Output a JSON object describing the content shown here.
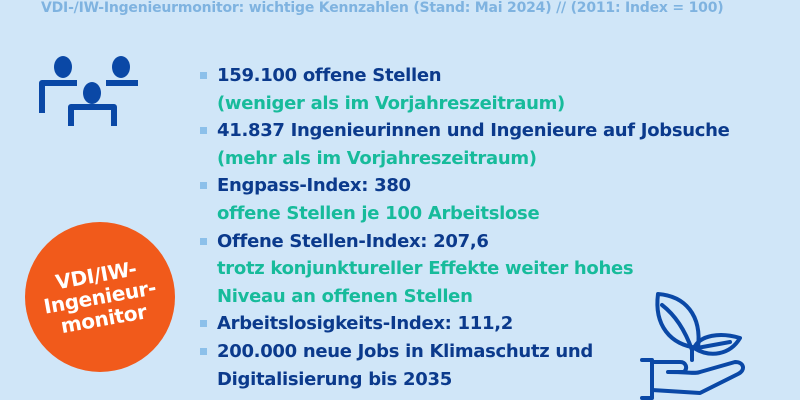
{
  "caption": "VDI-/IW-Ingenieurmonitor: wichtige Kennzahlen (Stand: Mai 2024) // (2011: Index = 100)",
  "badge": {
    "line1": "VDI/IW-",
    "line2": "Ingenieur-",
    "line3": "monitor"
  },
  "icons": {
    "people": "people-group-icon",
    "plant": "hand-plant-icon"
  },
  "colors": {
    "background": "#d0e6f8",
    "primary": "#0b3a8c",
    "accent": "#17bb9b",
    "badge": "#f15a1b",
    "icon": "#0a48a6"
  },
  "items": [
    {
      "main": "159.100 offene Stellen",
      "sub": [
        "(weniger als im Vorjahreszeitraum)"
      ]
    },
    {
      "main": "41.837 Ingenieurinnen und Ingenieure auf Jobsuche",
      "sub": [
        "(mehr als im Vorjahreszeitraum)"
      ]
    },
    {
      "main": "Engpass-Index: 380",
      "sub": [
        "offene Stellen je 100 Arbeitslose"
      ]
    },
    {
      "main": "Offene Stellen-Index: 207,6",
      "sub": [
        "trotz konjunktureller Effekte weiter hohes",
        "Niveau an offenen Stellen"
      ]
    },
    {
      "main": "Arbeitslosigkeits-Index: 111,2",
      "sub": []
    },
    {
      "main": "200.000 neue Jobs in Klimaschutz und",
      "main2": "Digitalisierung bis 2035",
      "sub": []
    }
  ]
}
